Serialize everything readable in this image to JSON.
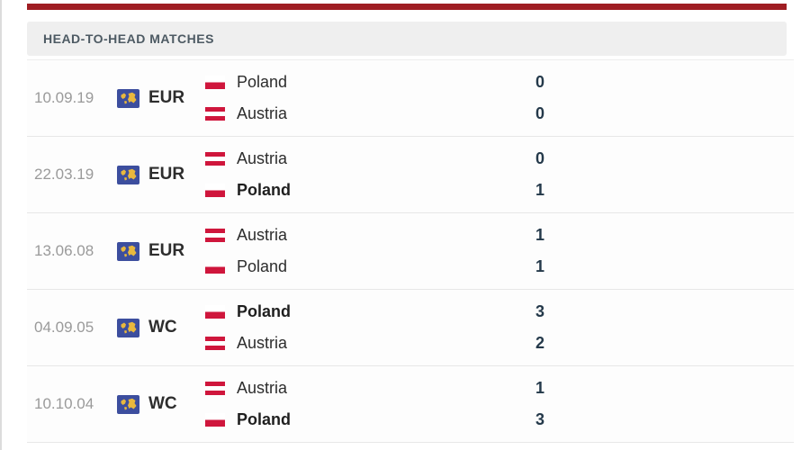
{
  "header": {
    "title": "HEAD-TO-HEAD MATCHES"
  },
  "colors": {
    "accent_red": "#9f1d23",
    "flag_red": "#cf163c",
    "comp_blue": "#3c4e9e",
    "comp_gold": "#e9b83d"
  },
  "matches": [
    {
      "date": "10.09.19",
      "competition": "EUR",
      "teams": [
        {
          "name": "Poland",
          "flag": "poland",
          "score": "0",
          "winner": false
        },
        {
          "name": "Austria",
          "flag": "austria",
          "score": "0",
          "winner": false
        }
      ]
    },
    {
      "date": "22.03.19",
      "competition": "EUR",
      "teams": [
        {
          "name": "Austria",
          "flag": "austria",
          "score": "0",
          "winner": false
        },
        {
          "name": "Poland",
          "flag": "poland",
          "score": "1",
          "winner": true
        }
      ]
    },
    {
      "date": "13.06.08",
      "competition": "EUR",
      "teams": [
        {
          "name": "Austria",
          "flag": "austria",
          "score": "1",
          "winner": false
        },
        {
          "name": "Poland",
          "flag": "poland",
          "score": "1",
          "winner": false
        }
      ]
    },
    {
      "date": "04.09.05",
      "competition": "WC",
      "teams": [
        {
          "name": "Poland",
          "flag": "poland",
          "score": "3",
          "winner": true
        },
        {
          "name": "Austria",
          "flag": "austria",
          "score": "2",
          "winner": false
        }
      ]
    },
    {
      "date": "10.10.04",
      "competition": "WC",
      "teams": [
        {
          "name": "Austria",
          "flag": "austria",
          "score": "1",
          "winner": false
        },
        {
          "name": "Poland",
          "flag": "poland",
          "score": "3",
          "winner": true
        }
      ]
    }
  ]
}
